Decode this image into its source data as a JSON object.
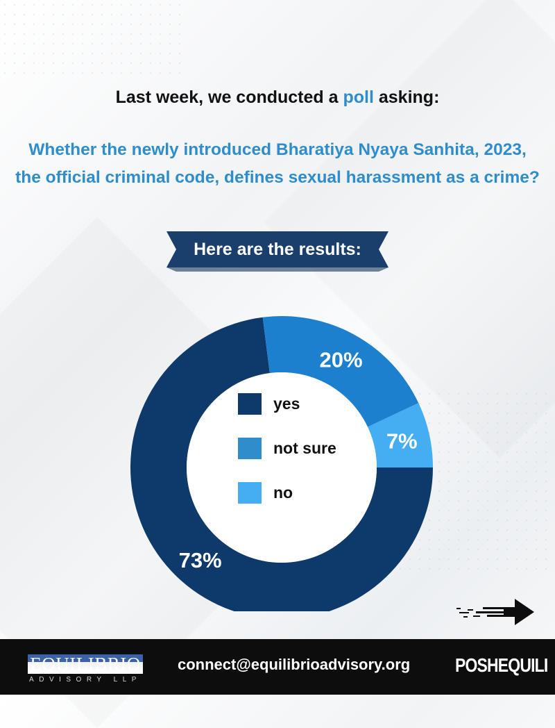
{
  "intro": {
    "before": "Last week, we conducted a ",
    "highlight": "poll",
    "after": " asking:"
  },
  "question": "Whether the newly introduced Bharatiya Nyaya Sanhita, 2023, the official criminal code, defines sexual harassment as a crime?",
  "banner": "Here are the results:",
  "colors": {
    "accent": "#2f8dcc",
    "banner": "#1b3f6c",
    "yes": "#0d3a6b",
    "not_sure": "#1c80cf",
    "no": "#45adf2"
  },
  "chart_data": {
    "type": "pie",
    "categories": [
      "yes",
      "not sure",
      "no"
    ],
    "values": [
      73,
      20,
      7
    ],
    "value_labels": [
      "73%",
      "20%",
      "7%"
    ],
    "colors": [
      "#0d3a6b",
      "#1c80cf",
      "#45adf2"
    ],
    "legend_placement": "center",
    "donut": true,
    "title": ""
  },
  "legend_swatch_colors": [
    "#0d3a6b",
    "#2f8dcc",
    "#45adf2"
  ],
  "footer": {
    "logo_left_main": "EQUILIBRIO",
    "logo_left_sub": "ADVISORY LLP",
    "email": "connect@equilibrioadvisory.org",
    "logo_right": "POSHEQUILI"
  }
}
